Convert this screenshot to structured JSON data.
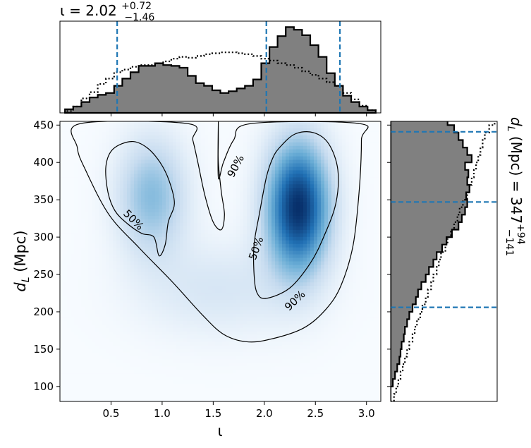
{
  "chart_data": [
    {
      "panel": "inclination-marginal",
      "type": "histogram",
      "title": {
        "base": "ι = 2.02",
        "sup": "+0.72",
        "sub": "−1.46"
      },
      "median": 2.02,
      "credible_bounds": [
        0.56,
        2.74
      ],
      "bins": [
        0.05,
        0.13,
        0.21,
        0.29,
        0.37,
        0.45,
        0.53,
        0.61,
        0.69,
        0.77,
        0.85,
        0.93,
        1.01,
        1.09,
        1.17,
        1.25,
        1.33,
        1.41,
        1.49,
        1.57,
        1.65,
        1.73,
        1.81,
        1.89,
        1.97,
        2.05,
        2.13,
        2.21,
        2.29,
        2.37,
        2.45,
        2.53,
        2.61,
        2.69,
        2.77,
        2.85,
        2.93,
        3.01,
        3.09
      ],
      "posterior": [
        0.04,
        0.07,
        0.12,
        0.17,
        0.2,
        0.22,
        0.3,
        0.38,
        0.45,
        0.52,
        0.52,
        0.55,
        0.53,
        0.52,
        0.5,
        0.41,
        0.33,
        0.3,
        0.25,
        0.22,
        0.24,
        0.27,
        0.3,
        0.37,
        0.55,
        0.73,
        0.85,
        0.95,
        0.92,
        0.86,
        0.75,
        0.62,
        0.44,
        0.3,
        0.19,
        0.12,
        0.07,
        0.03
      ],
      "prior": [
        0.02,
        0.07,
        0.16,
        0.23,
        0.32,
        0.38,
        0.45,
        0.48,
        0.51,
        0.53,
        0.53,
        0.55,
        0.57,
        0.6,
        0.62,
        0.61,
        0.63,
        0.65,
        0.66,
        0.67,
        0.67,
        0.66,
        0.65,
        0.63,
        0.6,
        0.58,
        0.55,
        0.53,
        0.5,
        0.46,
        0.42,
        0.38,
        0.34,
        0.3,
        0.22,
        0.15,
        0.08,
        0.03
      ]
    },
    {
      "panel": "joint-density",
      "type": "heatmap",
      "x": {
        "label": "ι",
        "range": [
          0.0,
          3.14
        ],
        "ticks": [
          "0.5",
          "1.0",
          "1.5",
          "2.0",
          "2.5",
          "3.0"
        ],
        "tick_values": [
          0.5,
          1.0,
          1.5,
          2.0,
          2.5,
          3.0
        ]
      },
      "y": {
        "label_main": "d",
        "label_sub": "L",
        "label_unit": " (Mpc)",
        "range": [
          80,
          455
        ],
        "ticks": [
          "100",
          "150",
          "200",
          "250",
          "300",
          "350",
          "400",
          "450"
        ],
        "tick_values": [
          100,
          150,
          200,
          250,
          300,
          350,
          400,
          450
        ]
      },
      "density_peaks": [
        {
          "x": 2.33,
          "y": 340,
          "sx": 0.22,
          "sy": 62,
          "amp": 1.0
        },
        {
          "x": 0.9,
          "y": 355,
          "sx": 0.24,
          "sy": 55,
          "amp": 0.42
        },
        {
          "x": 1.55,
          "y": 230,
          "sx": 0.55,
          "sy": 45,
          "amp": 0.16
        }
      ],
      "contours": [
        {
          "level": "90%",
          "points": [
            [
              1.55,
              455
            ],
            [
              1.55,
              430
            ],
            [
              1.55,
              400
            ],
            [
              1.58,
              360
            ],
            [
              1.61,
              330
            ],
            [
              1.58,
              310
            ],
            [
              1.5,
              320
            ],
            [
              1.42,
              355
            ],
            [
              1.35,
              400
            ],
            [
              1.3,
              430
            ],
            [
              1.25,
              452
            ],
            [
              0.2,
              452
            ],
            [
              0.17,
              420
            ],
            [
              0.25,
              390
            ],
            [
              0.48,
              330
            ],
            [
              0.78,
              285
            ],
            [
              1.1,
              240
            ],
            [
              1.4,
              195
            ],
            [
              1.6,
              170
            ],
            [
              1.82,
              160
            ],
            [
              2.05,
              163
            ],
            [
              2.38,
              178
            ],
            [
              2.6,
              203
            ],
            [
              2.75,
              235
            ],
            [
              2.87,
              290
            ],
            [
              2.93,
              365
            ],
            [
              2.95,
              430
            ],
            [
              2.93,
              452
            ],
            [
              1.87,
              452
            ],
            [
              1.7,
              430
            ],
            [
              1.6,
              400
            ],
            [
              1.55,
              380
            ]
          ]
        },
        {
          "level": "50%",
          "points": [
            [
              0.45,
              395
            ],
            [
              0.52,
              418
            ],
            [
              0.7,
              428
            ],
            [
              0.85,
              420
            ],
            [
              0.98,
              400
            ],
            [
              1.07,
              375
            ],
            [
              1.12,
              345
            ],
            [
              1.06,
              320
            ],
            [
              1.03,
              290
            ],
            [
              0.97,
              275
            ],
            [
              0.92,
              300
            ],
            [
              0.8,
              305
            ],
            [
              0.66,
              318
            ],
            [
              0.54,
              335
            ],
            [
              0.47,
              360
            ]
          ]
        },
        {
          "level": "50%",
          "points": [
            [
              2.15,
              420
            ],
            [
              2.3,
              438
            ],
            [
              2.48,
              440
            ],
            [
              2.63,
              425
            ],
            [
              2.72,
              390
            ],
            [
              2.7,
              345
            ],
            [
              2.58,
              300
            ],
            [
              2.45,
              265
            ],
            [
              2.25,
              232
            ],
            [
              2.02,
              218
            ],
            [
              1.93,
              225
            ],
            [
              1.9,
              250
            ],
            [
              1.9,
              290
            ],
            [
              1.95,
              330
            ],
            [
              2.02,
              380
            ],
            [
              2.08,
              405
            ]
          ]
        }
      ],
      "contour_labels": [
        {
          "text": "90%",
          "x": 1.72,
          "y": 395,
          "angle": -62
        },
        {
          "text": "90%",
          "x": 2.3,
          "y": 215,
          "angle": -44
        },
        {
          "text": "50%",
          "x": 0.72,
          "y": 323,
          "angle": 45
        },
        {
          "text": "50%",
          "x": 1.92,
          "y": 285,
          "angle": -70
        }
      ]
    },
    {
      "panel": "distance-marginal",
      "type": "histogram",
      "title": {
        "base": "d",
        "base_sub": "L",
        "rest": " (Mpc) = 347",
        "sup": "+94",
        "sub": "−141"
      },
      "median": 347,
      "credible_bounds": [
        206,
        441
      ],
      "bins": [
        80,
        90,
        100,
        110,
        120,
        130,
        140,
        150,
        160,
        170,
        180,
        190,
        200,
        210,
        220,
        230,
        240,
        250,
        260,
        270,
        280,
        290,
        300,
        310,
        320,
        330,
        340,
        350,
        360,
        370,
        380,
        390,
        400,
        410,
        420,
        430,
        440,
        450,
        460
      ],
      "posterior": [
        0,
        0,
        0.02,
        0.04,
        0.06,
        0.08,
        0.09,
        0.1,
        0.12,
        0.13,
        0.15,
        0.17,
        0.2,
        0.23,
        0.25,
        0.28,
        0.32,
        0.35,
        0.39,
        0.42,
        0.47,
        0.51,
        0.56,
        0.62,
        0.65,
        0.68,
        0.7,
        0.69,
        0.72,
        0.7,
        0.71,
        0.68,
        0.74,
        0.7,
        0.66,
        0.62,
        0.58,
        0.52
      ],
      "prior": [
        0.03,
        0.05,
        0.07,
        0.09,
        0.11,
        0.13,
        0.15,
        0.17,
        0.2,
        0.22,
        0.24,
        0.27,
        0.29,
        0.32,
        0.34,
        0.37,
        0.39,
        0.42,
        0.44,
        0.46,
        0.5,
        0.52,
        0.55,
        0.58,
        0.61,
        0.63,
        0.66,
        0.7,
        0.72,
        0.74,
        0.76,
        0.78,
        0.8,
        0.82,
        0.84,
        0.86,
        0.9,
        0.95
      ]
    }
  ],
  "colors": {
    "hist_fill": "#808080",
    "bound_line": "#1f77b4",
    "density_low": "#f7fbff",
    "density_high": "#08306b"
  }
}
